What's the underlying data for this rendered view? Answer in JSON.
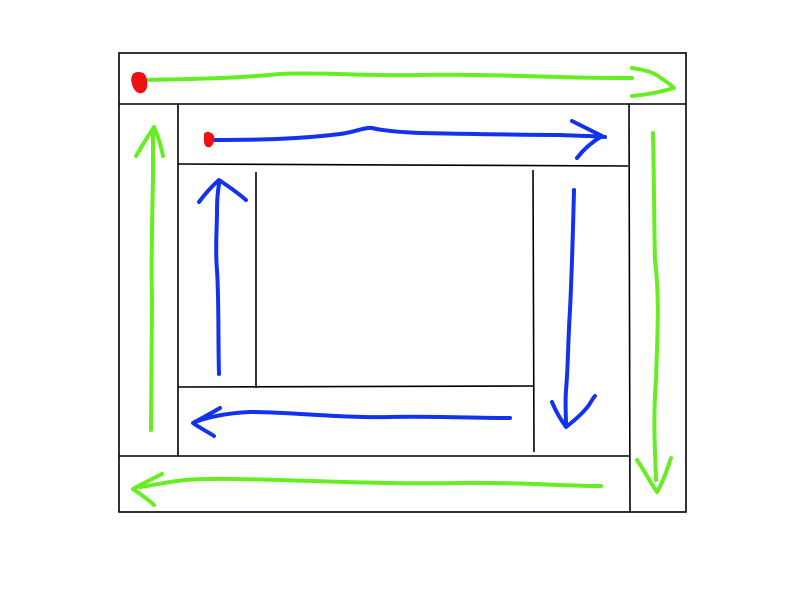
{
  "diagram": {
    "description_kind": "spiral-traversal",
    "colors": {
      "background": "#ffffff",
      "grid_line": "#000000",
      "outer_path": "#66ee22",
      "inner_path": "#1133ee",
      "start_marker": "#ee1111"
    },
    "outer_layer": {
      "direction_sequence": [
        "right",
        "down",
        "left",
        "up"
      ]
    },
    "inner_layer": {
      "direction_sequence": [
        "right",
        "down",
        "left",
        "up"
      ]
    }
  }
}
